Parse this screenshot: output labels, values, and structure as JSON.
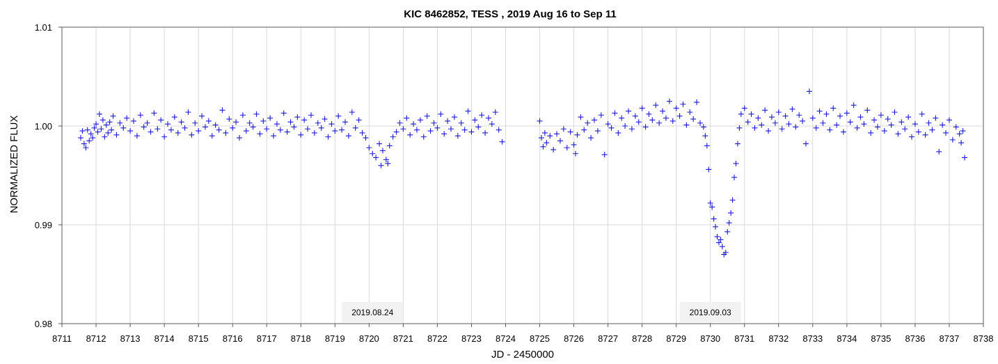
{
  "chart_data": {
    "type": "scatter",
    "title": "KIC 8462852, TESS , 2019 Aug 16 to Sep 11",
    "xlabel": "JD - 2450000",
    "ylabel": "NORMALIZED FLUX",
    "xlim": [
      8711,
      8738
    ],
    "ylim": [
      0.98,
      1.01
    ],
    "x_ticks": [
      8711,
      8712,
      8713,
      8714,
      8715,
      8716,
      8717,
      8718,
      8719,
      8720,
      8721,
      8722,
      8723,
      8724,
      8725,
      8726,
      8727,
      8728,
      8729,
      8730,
      8731,
      8732,
      8733,
      8734,
      8735,
      8736,
      8737,
      8738
    ],
    "y_ticks": [
      "0.98",
      "0.99",
      "1.00",
      "1.01"
    ],
    "grid": true,
    "marker": "+",
    "color": "#1a1ad6",
    "annotations": [
      {
        "text": "2019.08.24",
        "x": 8720.1
      },
      {
        "text": "2019.09.03",
        "x": 8730.0
      }
    ],
    "series": [
      {
        "points": [
          [
            8711.55,
            0.9988
          ],
          [
            8711.6,
            0.9995
          ],
          [
            8711.65,
            0.9982
          ],
          [
            8711.7,
            0.9978
          ],
          [
            8711.75,
            0.9996
          ],
          [
            8711.8,
            0.9985
          ],
          [
            8711.85,
            0.9992
          ],
          [
            8711.9,
            0.9988
          ],
          [
            8711.95,
            0.9998
          ],
          [
            8712.0,
            1.0002
          ],
          [
            8712.05,
            0.9994
          ],
          [
            8712.1,
            1.0012
          ],
          [
            8712.15,
            0.9997
          ],
          [
            8712.2,
            1.0006
          ],
          [
            8712.25,
            0.9989
          ],
          [
            8712.3,
            1.0001
          ],
          [
            8712.35,
            0.9993
          ],
          [
            8712.4,
            1.0004
          ],
          [
            8712.45,
            0.9996
          ],
          [
            8712.5,
            1.001
          ],
          [
            8712.6,
            0.9991
          ],
          [
            8712.7,
            1.0003
          ],
          [
            8712.8,
            0.9998
          ],
          [
            8712.9,
            1.0008
          ],
          [
            8713.0,
            0.9995
          ],
          [
            8713.1,
            1.0005
          ],
          [
            8713.2,
            0.999
          ],
          [
            8713.3,
            1.0011
          ],
          [
            8713.4,
            0.9999
          ],
          [
            8713.5,
            1.0003
          ],
          [
            8713.6,
            0.9994
          ],
          [
            8713.7,
            1.0013
          ],
          [
            8713.8,
            0.9997
          ],
          [
            8713.9,
            1.0006
          ],
          [
            8714.0,
            0.9989
          ],
          [
            8714.1,
            1.0002
          ],
          [
            8714.2,
            0.9996
          ],
          [
            8714.3,
            1.0009
          ],
          [
            8714.4,
            0.9993
          ],
          [
            8714.5,
            1.0004
          ],
          [
            8714.6,
            0.9998
          ],
          [
            8714.7,
            1.0014
          ],
          [
            8714.8,
            0.9991
          ],
          [
            8714.9,
            1.0003
          ],
          [
            8715.0,
            0.9995
          ],
          [
            8715.1,
            1.001
          ],
          [
            8715.2,
            0.9999
          ],
          [
            8715.3,
            1.0005
          ],
          [
            8715.4,
            0.999
          ],
          [
            8715.5,
            1.0001
          ],
          [
            8715.6,
            0.9996
          ],
          [
            8715.7,
            1.0016
          ],
          [
            8715.8,
            0.9993
          ],
          [
            8715.9,
            1.0007
          ],
          [
            8716.0,
            0.9998
          ],
          [
            8716.1,
            1.0004
          ],
          [
            8716.2,
            0.9988
          ],
          [
            8716.3,
            1.0011
          ],
          [
            8716.4,
            0.9995
          ],
          [
            8716.5,
            1.0003
          ],
          [
            8716.6,
            0.9999
          ],
          [
            8716.7,
            1.0012
          ],
          [
            8716.8,
            0.9992
          ],
          [
            8716.9,
            1.0005
          ],
          [
            8717.0,
            0.9997
          ],
          [
            8717.1,
            1.0008
          ],
          [
            8717.2,
            0.999
          ],
          [
            8717.3,
            1.0002
          ],
          [
            8717.4,
            0.9996
          ],
          [
            8717.5,
            1.0013
          ],
          [
            8717.6,
            0.9994
          ],
          [
            8717.7,
            1.0004
          ],
          [
            8717.8,
            0.9999
          ],
          [
            8717.9,
            1.0009
          ],
          [
            8718.0,
            0.9991
          ],
          [
            8718.1,
            1.0006
          ],
          [
            8718.2,
            0.9997
          ],
          [
            8718.3,
            1.0011
          ],
          [
            8718.4,
            0.9993
          ],
          [
            8718.5,
            1.0003
          ],
          [
            8718.6,
            0.9998
          ],
          [
            8718.7,
            1.0007
          ],
          [
            8718.8,
            0.9989
          ],
          [
            8718.9,
            1.0002
          ],
          [
            8719.0,
            0.9995
          ],
          [
            8719.1,
            1.001
          ],
          [
            8719.2,
            0.9996
          ],
          [
            8719.3,
            1.0004
          ],
          [
            8719.4,
            0.999
          ],
          [
            8719.5,
            1.0014
          ],
          [
            8719.6,
            0.9998
          ],
          [
            8719.7,
            1.0006
          ],
          [
            8719.8,
            0.9993
          ],
          [
            8719.9,
            0.9988
          ],
          [
            8720.0,
            0.9978
          ],
          [
            8720.1,
            0.9972
          ],
          [
            8720.2,
            0.9968
          ],
          [
            8720.3,
            0.9982
          ],
          [
            8720.35,
            0.996
          ],
          [
            8720.4,
            0.9975
          ],
          [
            8720.5,
            0.9966
          ],
          [
            8720.55,
            0.9962
          ],
          [
            8720.6,
            0.998
          ],
          [
            8720.7,
            0.9989
          ],
          [
            8720.8,
            0.9994
          ],
          [
            8720.9,
            1.0003
          ],
          [
            8721.0,
            0.9997
          ],
          [
            8721.1,
            1.0008
          ],
          [
            8721.2,
            0.9991
          ],
          [
            8721.3,
            1.0002
          ],
          [
            8721.4,
            0.9996
          ],
          [
            8721.5,
            1.0006
          ],
          [
            8721.6,
            0.9989
          ],
          [
            8721.7,
            1.001
          ],
          [
            8721.8,
            0.9995
          ],
          [
            8721.9,
            1.0003
          ],
          [
            8722.0,
            0.9998
          ],
          [
            8722.1,
            1.0012
          ],
          [
            8722.2,
            0.9992
          ],
          [
            8722.3,
            1.0005
          ],
          [
            8722.4,
            0.9997
          ],
          [
            8722.5,
            1.0009
          ],
          [
            8722.6,
            0.999
          ],
          [
            8722.7,
            1.0003
          ],
          [
            8722.8,
            0.9996
          ],
          [
            8722.9,
            1.0015
          ],
          [
            8723.0,
            0.9994
          ],
          [
            8723.1,
            1.0006
          ],
          [
            8723.2,
            0.9999
          ],
          [
            8723.3,
            1.0011
          ],
          [
            8723.4,
            0.9993
          ],
          [
            8723.5,
            1.0008
          ],
          [
            8723.6,
            1.0002
          ],
          [
            8723.7,
            1.0014
          ],
          [
            8723.8,
            0.9996
          ],
          [
            8723.9,
            0.9984
          ],
          [
            8725.0,
            1.0005
          ],
          [
            8725.05,
            0.9988
          ],
          [
            8725.1,
            0.9979
          ],
          [
            8725.15,
            0.9993
          ],
          [
            8725.2,
            0.9983
          ],
          [
            8725.3,
            0.999
          ],
          [
            8725.4,
            0.9976
          ],
          [
            8725.5,
            0.9992
          ],
          [
            8725.6,
            0.9985
          ],
          [
            8725.7,
            0.9997
          ],
          [
            8725.8,
            0.9978
          ],
          [
            8725.9,
            0.9994
          ],
          [
            8726.0,
            0.9981
          ],
          [
            8726.05,
            0.9972
          ],
          [
            8726.1,
            0.9991
          ],
          [
            8726.2,
            1.0009
          ],
          [
            8726.3,
            0.9996
          ],
          [
            8726.4,
            1.0003
          ],
          [
            8726.5,
            0.9988
          ],
          [
            8726.6,
            1.0006
          ],
          [
            8726.7,
            0.9995
          ],
          [
            8726.8,
            1.0011
          ],
          [
            8726.9,
            0.9971
          ],
          [
            8727.0,
            1.0002
          ],
          [
            8727.1,
            0.9998
          ],
          [
            8727.2,
            1.0013
          ],
          [
            8727.3,
            0.9993
          ],
          [
            8727.4,
            1.0008
          ],
          [
            8727.5,
            1.0
          ],
          [
            8727.6,
            1.0015
          ],
          [
            8727.7,
            0.9997
          ],
          [
            8727.8,
            1.001
          ],
          [
            8727.9,
            1.0004
          ],
          [
            8728.0,
            1.0018
          ],
          [
            8728.1,
            0.9999
          ],
          [
            8728.2,
            1.0012
          ],
          [
            8728.3,
            1.0006
          ],
          [
            8728.4,
            1.0021
          ],
          [
            8728.5,
            1.0003
          ],
          [
            8728.6,
            1.0015
          ],
          [
            8728.7,
            1.0008
          ],
          [
            8728.8,
            1.0025
          ],
          [
            8728.9,
            1.0005
          ],
          [
            8729.0,
            1.0018
          ],
          [
            8729.1,
            1.001
          ],
          [
            8729.2,
            1.0022
          ],
          [
            8729.3,
            1.0001
          ],
          [
            8729.4,
            1.0014
          ],
          [
            8729.5,
            1.0007
          ],
          [
            8729.6,
            1.0024
          ],
          [
            8729.7,
            1.0003
          ],
          [
            8729.8,
            0.9999
          ],
          [
            8729.85,
            0.999
          ],
          [
            8729.9,
            0.998
          ],
          [
            8729.95,
            0.9956
          ],
          [
            8730.0,
            0.9922
          ],
          [
            8730.05,
            0.9918
          ],
          [
            8730.1,
            0.9906
          ],
          [
            8730.15,
            0.9898
          ],
          [
            8730.2,
            0.9888
          ],
          [
            8730.25,
            0.9882
          ],
          [
            8730.3,
            0.9885
          ],
          [
            8730.35,
            0.9878
          ],
          [
            8730.4,
            0.987
          ],
          [
            8730.45,
            0.9872
          ],
          [
            8730.5,
            0.9893
          ],
          [
            8730.55,
            0.9902
          ],
          [
            8730.6,
            0.9912
          ],
          [
            8730.65,
            0.9925
          ],
          [
            8730.7,
            0.9948
          ],
          [
            8730.75,
            0.9962
          ],
          [
            8730.8,
            0.9982
          ],
          [
            8730.85,
            0.9998
          ],
          [
            8730.9,
            1.0012
          ],
          [
            8731.0,
            1.0018
          ],
          [
            8731.1,
            1.0004
          ],
          [
            8731.2,
            1.0012
          ],
          [
            8731.3,
            0.9998
          ],
          [
            8731.4,
            1.0008
          ],
          [
            8731.5,
            1.0001
          ],
          [
            8731.6,
            1.0016
          ],
          [
            8731.7,
            0.9995
          ],
          [
            8731.8,
            1.0009
          ],
          [
            8731.9,
            1.0003
          ],
          [
            8732.0,
            1.0014
          ],
          [
            8732.1,
            0.9997
          ],
          [
            8732.2,
            1.001
          ],
          [
            8732.3,
            1.0002
          ],
          [
            8732.4,
            1.0017
          ],
          [
            8732.5,
            0.9999
          ],
          [
            8732.6,
            1.0011
          ],
          [
            8732.7,
            1.0005
          ],
          [
            8732.8,
            0.9982
          ],
          [
            8732.9,
            1.0035
          ],
          [
            8733.0,
            1.0008
          ],
          [
            8733.1,
            0.9998
          ],
          [
            8733.2,
            1.0015
          ],
          [
            8733.3,
            1.0003
          ],
          [
            8733.4,
            1.0012
          ],
          [
            8733.5,
            0.9996
          ],
          [
            8733.6,
            1.0018
          ],
          [
            8733.7,
            1.0001
          ],
          [
            8733.8,
            1.001
          ],
          [
            8733.9,
            0.9994
          ],
          [
            8734.0,
            1.0013
          ],
          [
            8734.1,
            1.0004
          ],
          [
            8734.2,
            1.0021
          ],
          [
            8734.3,
            0.9998
          ],
          [
            8734.4,
            1.0009
          ],
          [
            8734.5,
            1.0002
          ],
          [
            8734.6,
            1.0016
          ],
          [
            8734.7,
            0.9993
          ],
          [
            8734.8,
            1.0006
          ],
          [
            8734.9,
            0.9999
          ],
          [
            8735.0,
            1.0011
          ],
          [
            8735.1,
            0.9995
          ],
          [
            8735.2,
            1.0007
          ],
          [
            8735.3,
            1.0001
          ],
          [
            8735.4,
            1.0014
          ],
          [
            8735.5,
            0.9992
          ],
          [
            8735.6,
            1.0004
          ],
          [
            8735.7,
            0.9997
          ],
          [
            8735.8,
            1.0009
          ],
          [
            8735.9,
            0.9989
          ],
          [
            8736.0,
            1.0002
          ],
          [
            8736.1,
            0.9994
          ],
          [
            8736.2,
            1.0012
          ],
          [
            8736.3,
            0.9991
          ],
          [
            8736.4,
            1.0003
          ],
          [
            8736.5,
            0.9996
          ],
          [
            8736.6,
            1.0008
          ],
          [
            8736.7,
            0.9974
          ],
          [
            8736.8,
            1.0001
          ],
          [
            8736.9,
            0.9993
          ],
          [
            8737.0,
            1.0006
          ],
          [
            8737.1,
            0.9986
          ],
          [
            8737.2,
            0.9999
          ],
          [
            8737.3,
            0.9992
          ],
          [
            8737.35,
            0.9983
          ],
          [
            8737.4,
            0.9995
          ],
          [
            8737.45,
            0.9968
          ]
        ]
      }
    ]
  }
}
